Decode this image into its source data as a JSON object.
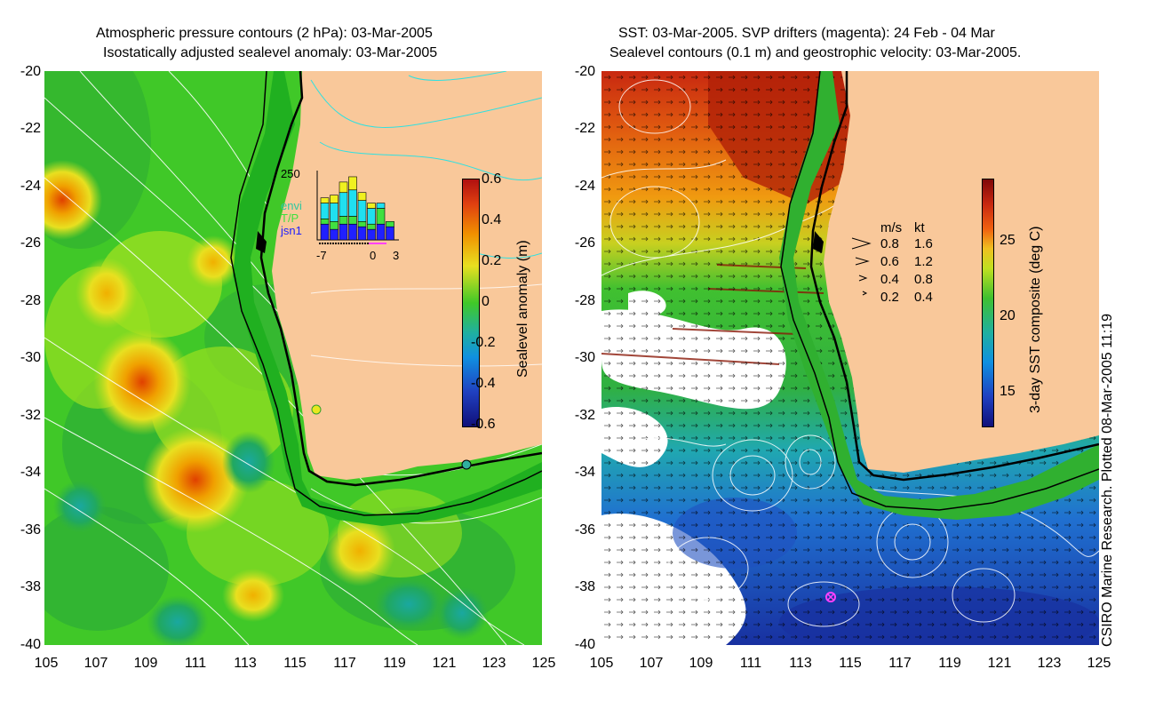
{
  "left_panel": {
    "title_line1": "Atmospheric pressure contours (2 hPa): 03-Mar-2005",
    "title_line2": "Isostatically adjusted sealevel anomaly: 03-Mar-2005",
    "colorbar": {
      "label": "Sealevel anomaly (m)",
      "ticks": [
        "0.6",
        "0.4",
        "0.2",
        "0",
        "-0.2",
        "-0.4",
        "-0.6"
      ],
      "range": [
        -0.6,
        0.6
      ]
    },
    "inset": {
      "y_max_label": "250",
      "legend": [
        "envi",
        "T/P",
        "jsn1"
      ],
      "legend_colors": [
        "#30c8a0",
        "#40e040",
        "#2020ff"
      ],
      "x_ticks": [
        "-7",
        "0",
        "3"
      ],
      "bars": [
        {
          "day": -6,
          "yellow": 20,
          "cyan": 60,
          "green": 20,
          "blue": 60
        },
        {
          "day": -5,
          "yellow": 30,
          "cyan": 70,
          "green": 30,
          "blue": 40
        },
        {
          "day": -4,
          "yellow": 40,
          "cyan": 90,
          "green": 30,
          "blue": 60
        },
        {
          "day": -3,
          "yellow": 50,
          "cyan": 100,
          "green": 30,
          "blue": 60
        },
        {
          "day": -2,
          "yellow": 30,
          "cyan": 80,
          "green": 20,
          "blue": 50
        },
        {
          "day": -1,
          "yellow": 20,
          "cyan": 60,
          "green": 20,
          "blue": 40
        },
        {
          "day": 0,
          "yellow": 0,
          "cyan": 20,
          "green": 60,
          "blue": 60
        },
        {
          "day": 1,
          "yellow": 0,
          "cyan": 0,
          "green": 20,
          "blue": 50
        }
      ]
    }
  },
  "right_panel": {
    "title_line1": "SST: 03-Mar-2005. SVP drifters (magenta): 24 Feb - 04 Mar",
    "title_line2": "Sealevel contours (0.1 m) and geostrophic velocity: 03-Mar-2005.",
    "colorbar": {
      "label": "3-day SST composite (deg C)",
      "ticks": [
        "25",
        "20",
        "15"
      ],
      "range": [
        13,
        29
      ]
    },
    "velocity_legend": {
      "header_ms": "m/s",
      "header_kt": "kt",
      "rows": [
        {
          "ms": "0.8",
          "kt": "1.6"
        },
        {
          "ms": "0.6",
          "kt": "1.2"
        },
        {
          "ms": "0.4",
          "kt": "0.8"
        },
        {
          "ms": "0.2",
          "kt": "0.4"
        }
      ]
    }
  },
  "axes": {
    "y_ticks": [
      "-20",
      "-22",
      "-24",
      "-26",
      "-28",
      "-30",
      "-32",
      "-34",
      "-36",
      "-38",
      "-40"
    ],
    "x_ticks": [
      "105",
      "107",
      "109",
      "111",
      "113",
      "115",
      "117",
      "119",
      "121",
      "123",
      "125"
    ],
    "lon_range": [
      105,
      125
    ],
    "lat_range": [
      -40,
      -20
    ]
  },
  "credit": "CSIRO Marine Research. Plotted 08-Mar-2005 11:19",
  "colors": {
    "land": "#f9c89a",
    "ocean_green": "#40c828",
    "shelf_green": "#20b020",
    "coast": "#000000",
    "drifter": "#ff40ff"
  }
}
